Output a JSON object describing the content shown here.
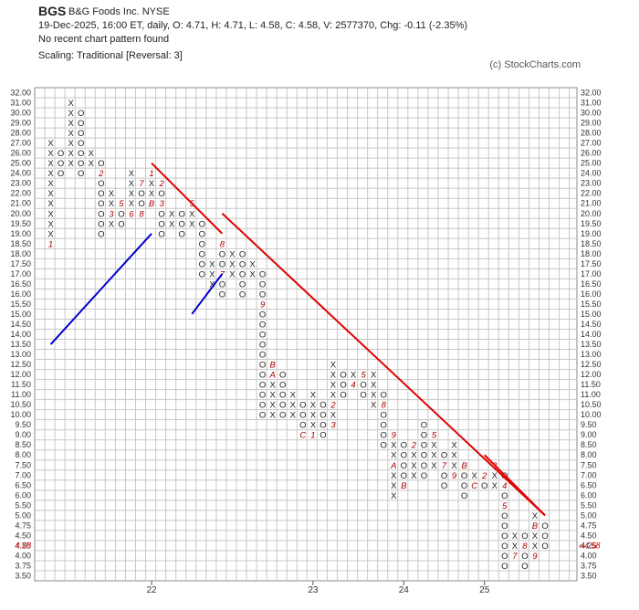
{
  "header": {
    "ticker": "BGS",
    "company": "B&G Foods Inc.  NYSE",
    "quote_line": "19-Dec-2025, 16:00 ET, daily, O: 4.71, H: 4.71, L: 4.58, C: 4.58, V: 2577370, Chg: -0.11 (-2.35%)",
    "pattern_line": "No recent chart pattern found",
    "scaling_line": "Scaling: Traditional [Reversal: 3]",
    "copyright": "(c) StockCharts.com"
  },
  "colors": {
    "x_mark": "#222222",
    "o_mark": "#222222",
    "month_mark": "#aa0000",
    "resistance": "#e00000",
    "support": "#0000cc",
    "grid": "#c8c8c8",
    "current_price": "#cc0000"
  },
  "chart_data": {
    "type": "point-and-figure",
    "price_levels": [
      32.0,
      31.0,
      30.0,
      29.0,
      28.0,
      27.0,
      26.0,
      25.0,
      24.0,
      23.0,
      22.0,
      21.0,
      20.0,
      19.5,
      19.0,
      18.5,
      18.0,
      17.5,
      17.0,
      16.5,
      16.0,
      15.5,
      15.0,
      14.5,
      14.0,
      13.5,
      13.0,
      12.5,
      12.0,
      11.5,
      11.0,
      10.5,
      10.0,
      9.5,
      9.0,
      8.5,
      8.0,
      7.5,
      7.0,
      6.5,
      6.0,
      5.5,
      5.0,
      4.75,
      4.5,
      4.25,
      4.0,
      3.75,
      3.5
    ],
    "price_labels": [
      "32.00",
      "31.00",
      "30.00",
      "29.00",
      "28.00",
      "27.00",
      "26.00",
      "25.00",
      "24.00",
      "23.00",
      "22.00",
      "21.00",
      "20.00",
      "19.50",
      "19.00",
      "18.50",
      "18.00",
      "17.50",
      "17.00",
      "16.50",
      "16.00",
      "15.50",
      "15.00",
      "14.50",
      "14.00",
      "13.50",
      "13.00",
      "12.50",
      "12.00",
      "11.50",
      "11.00",
      "10.50",
      "10.00",
      "9.50",
      "9.00",
      "8.50",
      "8.00",
      "7.50",
      "7.00",
      "6.50",
      "6.00",
      "5.50",
      "5.00",
      "4.75",
      "4.50",
      "4.25",
      "4.00",
      "3.75",
      "3.50"
    ],
    "current_price": 4.58,
    "current_price_label": "4.58",
    "year_labels": [
      {
        "label": "22",
        "column": 10
      },
      {
        "label": "23",
        "column": 26
      },
      {
        "label": "24",
        "column": 35
      },
      {
        "label": "25",
        "column": 43
      }
    ],
    "columns": [
      {
        "type": "X",
        "low": 18.5,
        "high": 27.0,
        "marks": {
          "18.5": "1"
        }
      },
      {
        "type": "O",
        "low": 24.0,
        "high": 26.0
      },
      {
        "type": "X",
        "low": 25.0,
        "high": 31.0
      },
      {
        "type": "O",
        "low": 24.0,
        "high": 30.0
      },
      {
        "type": "X",
        "low": 25.0,
        "high": 26.0
      },
      {
        "type": "O",
        "low": 19.0,
        "high": 25.0,
        "marks": {
          "24.0": "2"
        }
      },
      {
        "type": "X",
        "low": 19.5,
        "high": 22.0,
        "marks": {
          "20.0": "3"
        }
      },
      {
        "type": "O",
        "low": 19.5,
        "high": 21.0,
        "marks": {
          "21.0": "5"
        }
      },
      {
        "type": "X",
        "low": 20.0,
        "high": 24.0,
        "marks": {
          "20.0": "6"
        }
      },
      {
        "type": "O",
        "low": 20.0,
        "high": 23.0,
        "marks": {
          "23.0": "7",
          "20.0": "8"
        }
      },
      {
        "type": "X",
        "low": 20.5,
        "high": 24.0,
        "marks": {
          "20.5": "B",
          "24.0": "1"
        }
      },
      {
        "type": "O",
        "low": 19.0,
        "high": 23.0,
        "marks": {
          "23.0": "2",
          "20.5": "3"
        }
      },
      {
        "type": "X",
        "low": 19.5,
        "high": 20.0
      },
      {
        "type": "O",
        "low": 19.0,
        "high": 20.0,
        "marks": {
          "20.5": "4"
        }
      },
      {
        "type": "X",
        "low": 19.5,
        "high": 20.5,
        "marks": {
          "20.5": "5"
        }
      },
      {
        "type": "O",
        "low": 17.0,
        "high": 19.5
      },
      {
        "type": "X",
        "low": 16.5,
        "high": 17.5,
        "marks": {
          "16.0": "6"
        }
      },
      {
        "type": "O",
        "low": 16.0,
        "high": 18.5,
        "marks": {
          "17.0": "7",
          "18.5": "8"
        }
      },
      {
        "type": "X",
        "low": 17.0,
        "high": 18.0
      },
      {
        "type": "O",
        "low": 16.0,
        "high": 18.0
      },
      {
        "type": "X",
        "low": 17.0,
        "high": 17.5
      },
      {
        "type": "O",
        "low": 10.0,
        "high": 17.0,
        "marks": {
          "15.5": "9"
        }
      },
      {
        "type": "X",
        "low": 10.0,
        "high": 12.5,
        "marks": {
          "12.0": "A",
          "12.5": "B"
        }
      },
      {
        "type": "O",
        "low": 10.0,
        "high": 12.0
      },
      {
        "type": "X",
        "low": 10.0,
        "high": 11.0
      },
      {
        "type": "O",
        "low": 9.0,
        "high": 10.5,
        "marks": {
          "9.0": "C"
        }
      },
      {
        "type": "X",
        "low": 9.0,
        "high": 11.0,
        "marks": {
          "9.0": "1"
        }
      },
      {
        "type": "O",
        "low": 9.0,
        "high": 10.5
      },
      {
        "type": "X",
        "low": 9.5,
        "high": 12.5,
        "marks": {
          "10.5": "2",
          "9.5": "3"
        }
      },
      {
        "type": "O",
        "low": 11.0,
        "high": 12.0
      },
      {
        "type": "X",
        "low": 11.5,
        "high": 12.0,
        "marks": {
          "11.5": "4"
        }
      },
      {
        "type": "O",
        "low": 11.0,
        "high": 12.0,
        "marks": {
          "12.0": "5"
        }
      },
      {
        "type": "X",
        "low": 10.5,
        "high": 12.0
      },
      {
        "type": "O",
        "low": 8.5,
        "high": 11.0,
        "marks": {
          "10.5": "8"
        }
      },
      {
        "type": "X",
        "low": 6.0,
        "high": 9.0,
        "marks": {
          "9.0": "9",
          "7.5": "A"
        }
      },
      {
        "type": "O",
        "low": 6.5,
        "high": 8.5,
        "marks": {
          "6.5": "B"
        }
      },
      {
        "type": "X",
        "low": 7.0,
        "high": 8.5,
        "marks": {
          "8.5": "2"
        }
      },
      {
        "type": "O",
        "low": 7.0,
        "high": 9.5
      },
      {
        "type": "X",
        "low": 7.5,
        "high": 9.0,
        "marks": {
          "9.0": "5"
        }
      },
      {
        "type": "O",
        "low": 6.5,
        "high": 8.0,
        "marks": {
          "7.5": "7"
        }
      },
      {
        "type": "X",
        "low": 7.0,
        "high": 8.5,
        "marks": {
          "7.0": "9"
        }
      },
      {
        "type": "O",
        "low": 6.0,
        "high": 7.5,
        "marks": {
          "7.5": "B"
        }
      },
      {
        "type": "X",
        "low": 6.5,
        "high": 7.0,
        "marks": {
          "6.5": "C"
        }
      },
      {
        "type": "O",
        "low": 6.5,
        "high": 7.0,
        "marks": {
          "7.0": "2"
        }
      },
      {
        "type": "X",
        "low": 6.5,
        "high": 7.5,
        "marks": {
          "7.5": "3"
        }
      },
      {
        "type": "O",
        "low": 3.75,
        "high": 7.0,
        "marks": {
          "6.5": "4",
          "5.5": "5"
        }
      },
      {
        "type": "X",
        "low": 4.0,
        "high": 4.5,
        "marks": {
          "4.0": "7"
        }
      },
      {
        "type": "O",
        "low": 3.75,
        "high": 4.5,
        "marks": {
          "4.25": "8"
        }
      },
      {
        "type": "X",
        "low": 4.0,
        "high": 5.0,
        "marks": {
          "4.75": "B",
          "4.0": "9"
        }
      },
      {
        "type": "O",
        "low": 4.25,
        "high": 4.75
      }
    ],
    "trendlines": [
      {
        "kind": "support",
        "from": {
          "column": 0,
          "price": 13.5
        },
        "to": {
          "column": 10,
          "price": 19.0
        }
      },
      {
        "kind": "resistance",
        "from": {
          "column": 10,
          "price": 25.0
        },
        "to": {
          "column": 17,
          "price": 19.0
        }
      },
      {
        "kind": "support",
        "from": {
          "column": 14,
          "price": 15.0
        },
        "to": {
          "column": 17,
          "price": 17.0
        }
      },
      {
        "kind": "resistance",
        "from": {
          "column": 17,
          "price": 20.0
        },
        "to": {
          "column": 49,
          "price": 5.0
        }
      },
      {
        "kind": "resistance",
        "from": {
          "column": 43,
          "price": 8.0
        },
        "to": {
          "column": 49,
          "price": 5.0
        }
      }
    ],
    "grid": true,
    "scale": "traditional"
  }
}
